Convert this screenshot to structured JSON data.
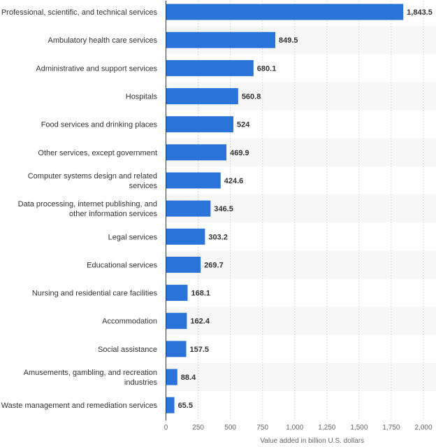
{
  "chart_data": {
    "type": "bar",
    "orientation": "horizontal",
    "categories": [
      "Professional, scientific, and technical services",
      "Ambulatory health care services",
      "Administrative and support services",
      "Hospitals",
      "Food services and drinking places",
      "Other services, except government",
      "Computer systems design and related services",
      "Data processing, internet publishing, and other information services",
      "Legal services",
      "Educational services",
      "Nursing and residential care facilities",
      "Accommodation",
      "Social assistance",
      "Amusements, gambling, and recreation industries",
      "Waste management and remediation services"
    ],
    "category_lines": [
      [
        "Professional, scientific, and technical services"
      ],
      [
        "Ambulatory health care services"
      ],
      [
        "Administrative and support services"
      ],
      [
        "Hospitals"
      ],
      [
        "Food services and drinking places"
      ],
      [
        "Other services, except government"
      ],
      [
        "Computer systems design and related",
        "services"
      ],
      [
        "Data processing, internet publishing, and",
        "other information services"
      ],
      [
        "Legal services"
      ],
      [
        "Educational services"
      ],
      [
        "Nursing and residential care facilities"
      ],
      [
        "Accommodation"
      ],
      [
        "Social assistance"
      ],
      [
        "Amusements, gambling, and recreation",
        "industries"
      ],
      [
        "Waste management and remediation services"
      ]
    ],
    "values": [
      1843.5,
      849.5,
      680.1,
      560.8,
      524,
      469.9,
      424.6,
      346.5,
      303.2,
      269.7,
      168.1,
      162.4,
      157.5,
      88.4,
      65.5
    ],
    "value_labels": [
      "1,843.5",
      "849.5",
      "680.1",
      "560.8",
      "524",
      "469.9",
      "424.6",
      "346.5",
      "303.2",
      "269.7",
      "168.1",
      "162.4",
      "157.5",
      "88.4",
      "65.5"
    ],
    "xlim": [
      0,
      2000
    ],
    "xticks": [
      0,
      250,
      500,
      750,
      1000,
      1250,
      1500,
      1750,
      2000
    ],
    "xtick_labels": [
      "0",
      "250",
      "500",
      "750",
      "1,000",
      "1,250",
      "1,500",
      "1,750",
      "2,000"
    ],
    "xlabel": "Value added in billion U.S. dollars",
    "ylabel": "",
    "title": "",
    "grid": true,
    "colors": {
      "bar": "#2a73d9",
      "band": "#f7f7f7",
      "grid": "#d9d9d9",
      "axis": "#333333"
    }
  }
}
